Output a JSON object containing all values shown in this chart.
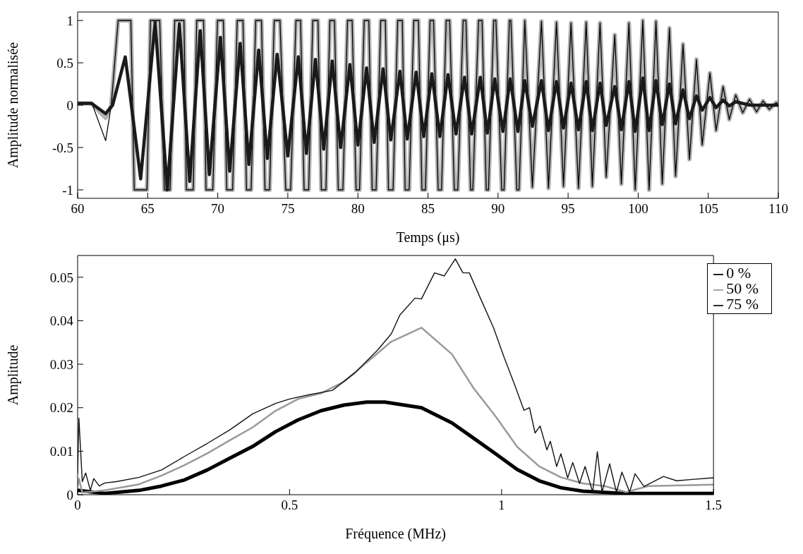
{
  "chart_data": [
    {
      "type": "line",
      "xlabel": "Temps (μs)",
      "ylabel": "Amplitude normalisée",
      "xlim": [
        60,
        110
      ],
      "ylim": [
        -1.1,
        1.1
      ],
      "xticks": [
        60,
        65,
        70,
        75,
        80,
        85,
        90,
        95,
        100,
        105,
        110
      ],
      "yticks": [
        -1,
        -0.5,
        0,
        0.5,
        1
      ],
      "legend": false,
      "line_style": "solid",
      "marker": "none",
      "series": [
        {
          "color": "#b0b0b0",
          "x": [
            60,
            61,
            62.0,
            62.4,
            62.89,
            63.8,
            64.04,
            64.95,
            65.2,
            65.86,
            66.19,
            66.6,
            66.93,
            67.59,
            67.76,
            68.25,
            68.5,
            68.99,
            69.16,
            69.65,
            69.98,
            70.4,
            70.64,
            71.06,
            71.39,
            71.8,
            72.05,
            72.38,
            72.71,
            73.12,
            73.37,
            73.7,
            74.03,
            74.44,
            74.85,
            75.2,
            75.58,
            75.91,
            76.16,
            76.49,
            76.78,
            77.15,
            77.39,
            77.72,
            78.0,
            78.33,
            78.6,
            78.93,
            79.26,
            79.59,
            79.87,
            80.12,
            80.45,
            80.78,
            81.02,
            81.3,
            81.63,
            81.96,
            82.18,
            82.51,
            82.84,
            83.17,
            83.37,
            83.66,
            83.99,
            84.32,
            84.57,
            84.82,
            85.15,
            85.4,
            85.73,
            85.97,
            86.3,
            86.55,
            86.88,
            87.13,
            87.51,
            87.71,
            88.04,
            88.2,
            88.61,
            88.86,
            89.16,
            89.32,
            89.69,
            89.85,
            90.26,
            90.43,
            90.81,
            90.92,
            91.34,
            91.5,
            91.91,
            92.45,
            93.1,
            93.6,
            94.17,
            94.67,
            95.21,
            95.74,
            96.29,
            96.73,
            97.28,
            97.72,
            98.33,
            98.8,
            99.34,
            99.79,
            100.33,
            100.78,
            101.27,
            101.72,
            102.23,
            102.67,
            103.2,
            103.66,
            104.16,
            104.57,
            105.12,
            105.56,
            106.06,
            106.5,
            106.96,
            107.46,
            107.95,
            108.45,
            108.91,
            109.36,
            109.85,
            110
          ],
          "values": [
            0.02,
            0.02,
            -0.15,
            0,
            1,
            1,
            -1,
            -1,
            1,
            1,
            -1,
            -1,
            1,
            1,
            -1,
            -1,
            1,
            1,
            -1,
            -1,
            1,
            1,
            -1,
            -1,
            1,
            1,
            -1,
            -1,
            1,
            1,
            -1,
            -1,
            1,
            1,
            -1,
            -1,
            1,
            1,
            -1,
            -1,
            1,
            1,
            -1,
            -1,
            1,
            1,
            -1,
            -1,
            1,
            1,
            -1,
            -1,
            1,
            1,
            -1,
            -1,
            1,
            1,
            -1,
            -1,
            1,
            1,
            -1,
            -1,
            1,
            1,
            -1,
            -1,
            1,
            1,
            -1,
            -1,
            1,
            1,
            -1,
            -1,
            1,
            1,
            -1,
            -1,
            1,
            1,
            -1,
            -1,
            1,
            1,
            -1,
            -1,
            1,
            1,
            -1,
            -1,
            1,
            -0.97,
            0.99,
            -0.98,
            0.98,
            -0.96,
            0.97,
            -0.98,
            0.98,
            -0.96,
            0.97,
            -0.85,
            0.83,
            -0.93,
            0.97,
            -1,
            1,
            -1,
            0.99,
            -0.93,
            0.91,
            -0.84,
            0.72,
            -0.64,
            0.54,
            -0.47,
            0.38,
            -0.3,
            0.22,
            -0.17,
            0.12,
            -0.09,
            0.07,
            -0.08,
            0.05,
            -0.05,
            0.03,
            0
          ]
        },
        {
          "color": "#000000",
          "x": [
            60,
            61,
            62.0,
            62.4,
            62.89,
            63.8,
            64.04,
            64.95,
            65.2,
            65.86,
            66.19,
            66.6,
            66.93,
            67.59,
            67.76,
            68.25,
            68.5,
            68.99,
            69.16,
            69.65,
            69.98,
            70.4,
            70.64,
            71.06,
            71.39,
            71.8,
            72.05,
            72.38,
            72.71,
            73.12,
            73.37,
            73.7,
            74.03,
            74.44,
            74.85,
            75.2,
            75.58,
            75.91,
            76.16,
            76.49,
            76.78,
            77.15,
            77.39,
            77.72,
            78.0,
            78.33,
            78.6,
            78.93,
            79.26,
            79.59,
            79.87,
            80.12,
            80.45,
            80.78,
            81.02,
            81.3,
            81.63,
            81.96,
            82.18,
            82.51,
            82.84,
            83.17,
            83.37,
            83.66,
            83.99,
            84.32,
            84.57,
            84.82,
            85.15,
            85.4,
            85.73,
            85.97,
            86.3,
            86.55,
            86.88,
            87.13,
            87.51,
            87.71,
            88.04,
            88.2,
            88.61,
            88.86,
            89.16,
            89.32,
            89.69,
            89.85,
            90.26,
            90.43,
            90.81,
            90.92,
            91.34,
            91.5,
            91.91,
            92.45,
            93.1,
            93.6,
            94.17,
            94.67,
            95.21,
            95.74,
            96.29,
            96.73,
            97.28,
            97.72,
            98.33,
            98.8,
            99.34,
            99.79,
            100.33,
            100.78,
            101.27,
            101.72,
            102.23,
            102.67,
            103.2,
            103.66,
            104.16,
            104.57,
            105.12,
            105.56,
            106.06,
            106.5,
            106.96,
            107.46,
            107.95,
            108.45,
            108.91,
            109.36,
            109.85,
            110
          ],
          "values": [
            0.03,
            0.03,
            -0.42,
            0,
            1,
            1,
            -1,
            -1,
            1,
            1,
            -1,
            -1,
            1,
            1,
            -1,
            -1,
            1,
            1,
            -1,
            -1,
            1,
            1,
            -1,
            -1,
            1,
            1,
            -1,
            -1,
            1,
            1,
            -1,
            -1,
            1,
            1,
            -1,
            -1,
            1,
            1,
            -1,
            -1,
            1,
            1,
            -1,
            -1,
            1,
            1,
            -1,
            -1,
            1,
            1,
            -1,
            -1,
            1,
            1,
            -1,
            -1,
            1,
            1,
            -1,
            -1,
            1,
            1,
            -1,
            -1,
            1,
            1,
            -1,
            -1,
            1,
            1,
            -1,
            -1,
            1,
            1,
            -1,
            -1,
            1,
            1,
            -1,
            -1,
            1,
            1,
            -1,
            -1,
            1,
            1,
            -1,
            -1,
            1,
            1,
            -1,
            -1,
            1,
            -0.97,
            0.99,
            -0.98,
            0.98,
            -0.96,
            0.97,
            -0.98,
            0.98,
            -0.96,
            0.97,
            -0.85,
            0.83,
            -0.93,
            0.97,
            -1,
            1,
            -1,
            0.99,
            -0.93,
            0.91,
            -0.84,
            0.72,
            -0.64,
            0.54,
            -0.47,
            0.38,
            -0.3,
            0.22,
            -0.17,
            0.12,
            -0.09,
            0.07,
            -0.08,
            0.05,
            -0.05,
            0.03,
            0
          ]
        },
        {
          "color": "#1a1a1a",
          "x": [
            60,
            61,
            62.0,
            62.5,
            63.4,
            64.5,
            65.53,
            66.4,
            67.26,
            68.0,
            68.75,
            69.4,
            70.19,
            70.85,
            71.6,
            72.22,
            72.92,
            73.54,
            74.24,
            75.0,
            75.75,
            76.33,
            76.97,
            77.56,
            78.17,
            78.77,
            79.43,
            80.0,
            80.62,
            81.16,
            81.8,
            82.35,
            83.0,
            83.52,
            84.16,
            84.7,
            85.28,
            85.85,
            86.43,
            87.0,
            87.61,
            88.12,
            88.74,
            89.24,
            89.77,
            90.35,
            90.87,
            91.42,
            91.91,
            92.45,
            93.1,
            93.6,
            94.17,
            94.67,
            95.21,
            95.74,
            96.29,
            96.73,
            97.28,
            97.72,
            98.33,
            98.8,
            99.34,
            99.79,
            100.33,
            100.78,
            101.27,
            101.72,
            102.23,
            102.67,
            103.2,
            103.66,
            104.16,
            104.57,
            105.12,
            105.56,
            106.06,
            106.5,
            106.96,
            108,
            110
          ],
          "values": [
            0.02,
            0.02,
            -0.1,
            0,
            0.57,
            -0.87,
            0.98,
            -1,
            0.96,
            -0.9,
            0.88,
            -0.82,
            0.8,
            -0.78,
            0.73,
            -0.7,
            0.65,
            -0.63,
            0.6,
            -0.6,
            0.57,
            -0.57,
            0.54,
            -0.52,
            0.52,
            -0.5,
            0.48,
            -0.47,
            0.44,
            -0.44,
            0.43,
            -0.41,
            0.4,
            -0.4,
            0.39,
            -0.37,
            0.37,
            -0.37,
            0.36,
            -0.34,
            0.33,
            -0.34,
            0.33,
            -0.33,
            0.31,
            -0.31,
            0.31,
            -0.31,
            0.29,
            -0.25,
            0.29,
            -0.3,
            0.28,
            -0.27,
            0.26,
            -0.29,
            0.28,
            -0.3,
            0.26,
            -0.24,
            0.22,
            -0.29,
            0.28,
            -0.31,
            0.32,
            -0.3,
            0.29,
            -0.23,
            0.25,
            -0.22,
            0.18,
            -0.16,
            0.11,
            -0.06,
            0.09,
            -0.03,
            0.06,
            -0.01,
            0.04,
            0,
            0
          ]
        }
      ]
    },
    {
      "type": "line",
      "xlabel": "Fréquence (MHz)",
      "ylabel": "Amplitude",
      "xlim": [
        0,
        1.5
      ],
      "ylim": [
        0,
        0.055
      ],
      "xticks": [
        0,
        0.5,
        1,
        1.5
      ],
      "yticks": [
        0,
        0.01,
        0.02,
        0.03,
        0.04,
        0.05
      ],
      "legend": "top right",
      "line_style": "solid",
      "marker": "none",
      "series": [
        {
          "name": "0 %",
          "color": "#000000",
          "x": [
            0,
            0.064,
            0.145,
            0.198,
            0.252,
            0.306,
            0.359,
            0.413,
            0.467,
            0.52,
            0.574,
            0.628,
            0.682,
            0.725,
            0.811,
            0.883,
            0.934,
            0.986,
            1.037,
            1.089,
            1.14,
            1.192,
            1.29,
            1.5
          ],
          "values": [
            0.001,
            0.0003,
            0.001,
            0.002,
            0.0034,
            0.0057,
            0.0084,
            0.0111,
            0.0145,
            0.0172,
            0.0193,
            0.0206,
            0.0213,
            0.0213,
            0.02,
            0.0165,
            0.013,
            0.0094,
            0.0058,
            0.0032,
            0.0016,
            0.0008,
            0.0003,
            0.0003
          ]
        },
        {
          "name": "50 %",
          "color": "#9a9a9a",
          "x": [
            0,
            0.003,
            0.011,
            0.064,
            0.145,
            0.198,
            0.252,
            0.306,
            0.359,
            0.413,
            0.467,
            0.52,
            0.574,
            0.628,
            0.682,
            0.74,
            0.811,
            0.883,
            0.934,
            0.986,
            1.037,
            1.089,
            1.14,
            1.192,
            1.243,
            1.294,
            1.346,
            1.5
          ],
          "values": [
            0.002,
            0.0037,
            0.0005,
            0.001,
            0.0024,
            0.0044,
            0.0068,
            0.0095,
            0.0125,
            0.0155,
            0.0193,
            0.022,
            0.0233,
            0.026,
            0.0304,
            0.0352,
            0.0384,
            0.0323,
            0.0245,
            0.018,
            0.011,
            0.0065,
            0.004,
            0.0026,
            0.002,
            0.0006,
            0.002,
            0.0023
          ]
        },
        {
          "name": "75 %",
          "color": "#111111",
          "x": [
            0,
            0.003,
            0.011,
            0.019,
            0.03,
            0.038,
            0.051,
            0.064,
            0.091,
            0.145,
            0.198,
            0.252,
            0.306,
            0.359,
            0.413,
            0.467,
            0.5,
            0.547,
            0.601,
            0.654,
            0.708,
            0.74,
            0.76,
            0.796,
            0.811,
            0.842,
            0.865,
            0.891,
            0.909,
            0.924,
            0.95,
            0.981,
            1.006,
            1.032,
            1.053,
            1.066,
            1.079,
            1.091,
            1.107,
            1.115,
            1.13,
            1.14,
            1.156,
            1.168,
            1.184,
            1.197,
            1.215,
            1.226,
            1.237,
            1.255,
            1.271,
            1.284,
            1.302,
            1.315,
            1.336,
            1.382,
            1.413,
            1.449,
            1.5
          ],
          "values": [
            0.005,
            0.0176,
            0.003,
            0.005,
            0.001,
            0.0037,
            0.002,
            0.0027,
            0.003,
            0.004,
            0.0057,
            0.0088,
            0.0118,
            0.0149,
            0.0186,
            0.021,
            0.022,
            0.023,
            0.024,
            0.028,
            0.0333,
            0.037,
            0.0413,
            0.0452,
            0.045,
            0.051,
            0.0503,
            0.0542,
            0.051,
            0.051,
            0.0452,
            0.0384,
            0.0316,
            0.025,
            0.0194,
            0.02,
            0.0142,
            0.0158,
            0.0103,
            0.0123,
            0.0065,
            0.0094,
            0.0039,
            0.0074,
            0.0026,
            0.0065,
            0.0006,
            0.0099,
            0.0006,
            0.0071,
            0.0006,
            0.0052,
            0.0006,
            0.0048,
            0.0019,
            0.0042,
            0.0032,
            0.0035,
            0.0039
          ]
        }
      ]
    }
  ]
}
